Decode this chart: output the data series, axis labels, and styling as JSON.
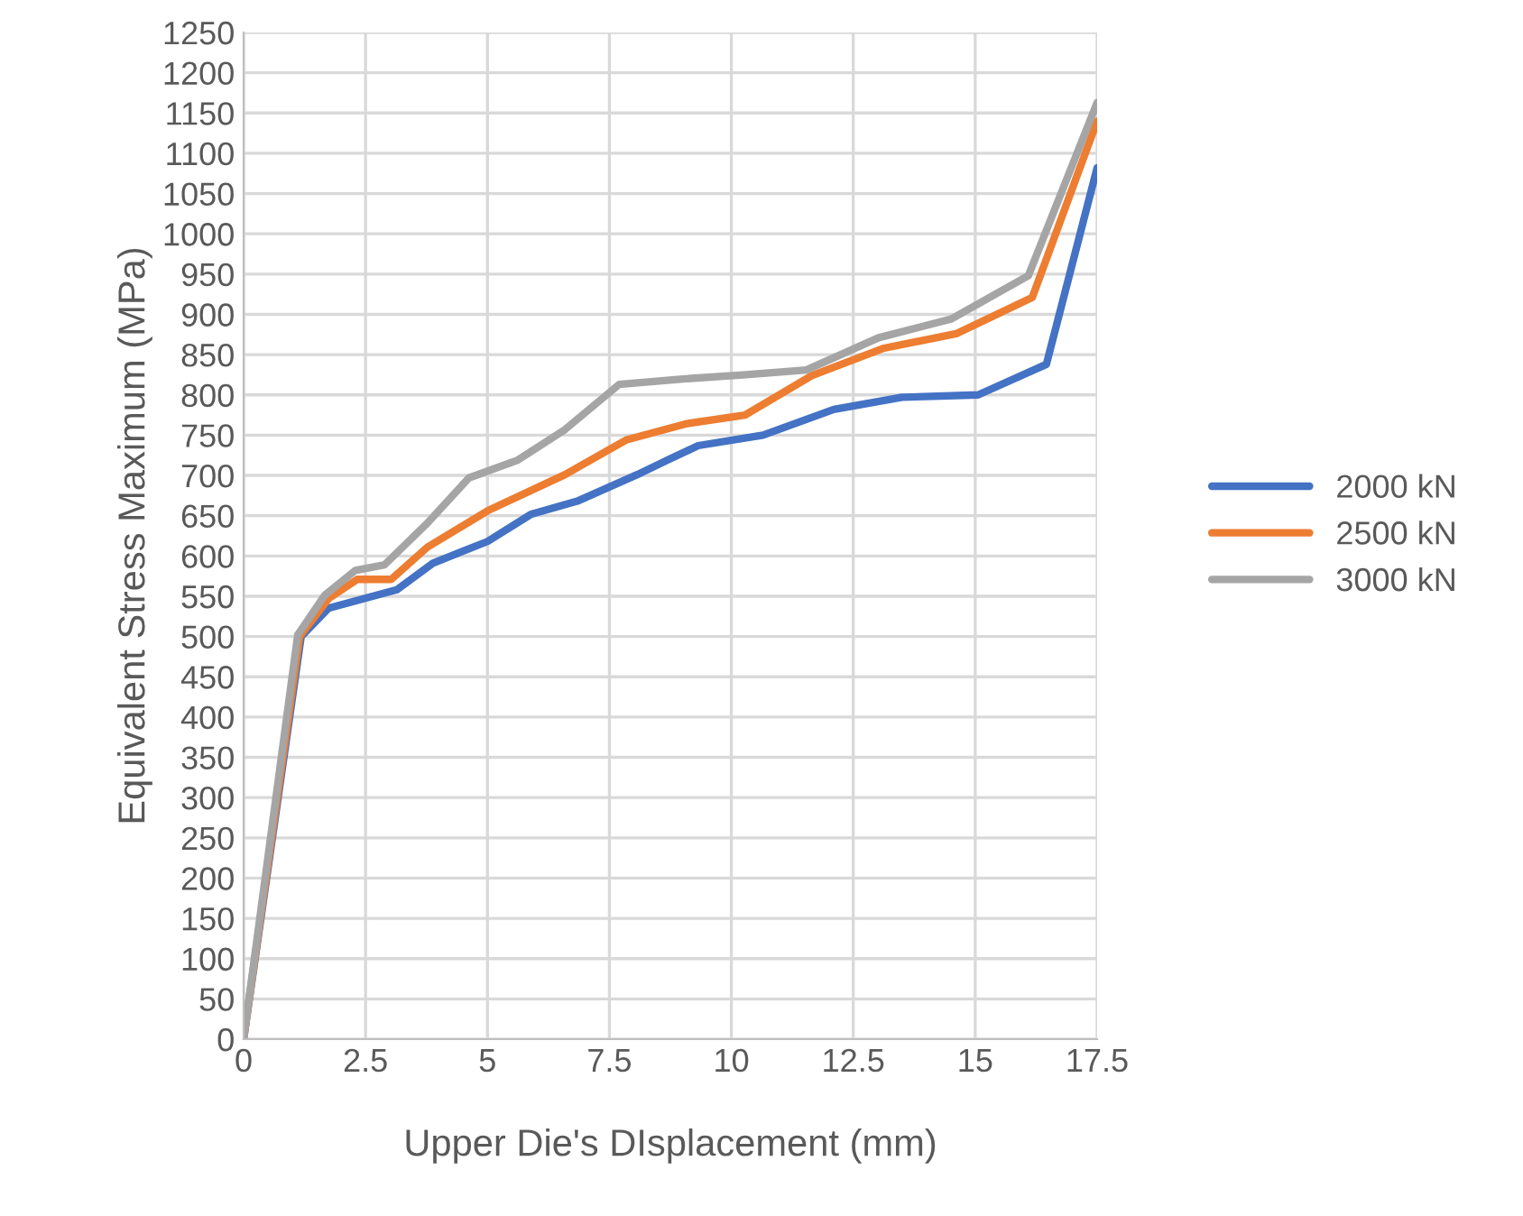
{
  "chart_data": {
    "type": "line",
    "xlabel": "Upper Die's DIsplacement (mm)",
    "ylabel": "Equivalent Stress Maximum (MPa)",
    "xlim": [
      0,
      17.5
    ],
    "xticks": [
      0,
      {
        "value": 2.5,
        "label": "2.5"
      },
      5,
      {
        "value": 7.5,
        "label": "7.5"
      },
      10,
      {
        "value": 12.5,
        "label": "12.5"
      },
      15,
      {
        "value": 17.5,
        "label": "17.5"
      }
    ],
    "ylim": [
      0,
      1250
    ],
    "yticks": [
      0,
      50,
      100,
      150,
      200,
      250,
      300,
      350,
      400,
      450,
      500,
      550,
      600,
      650,
      700,
      750,
      800,
      850,
      900,
      950,
      1000,
      1050,
      1100,
      1150,
      1200,
      1250
    ],
    "grid": true,
    "legend": "right",
    "marker": "none",
    "line_style": "solid",
    "series": [
      {
        "name": "2000 kN",
        "color": "#4472c4",
        "x": [
          0,
          1.18,
          1.74,
          3.14,
          3.88,
          5.0,
          5.9,
          6.84,
          8.07,
          8.69,
          9.32,
          10.65,
          12.1,
          13.5,
          15.06,
          16.46,
          17.5
        ],
        "values": [
          0,
          500,
          535,
          558,
          591,
          618,
          652,
          668,
          701,
          719,
          737,
          750,
          782,
          797,
          800,
          838,
          1082
        ]
      },
      {
        "name": "2500 kN",
        "color": "#ed7d31",
        "x": [
          0,
          1.15,
          1.74,
          2.33,
          3.03,
          3.77,
          5.0,
          6.59,
          7.84,
          9.06,
          10.28,
          11.65,
          13.13,
          14.61,
          16.17,
          17.5
        ],
        "values": [
          0,
          500,
          547,
          571,
          571,
          611,
          656,
          701,
          744,
          764,
          775,
          824,
          858,
          876,
          921,
          1140
        ]
      },
      {
        "name": "3000 kN",
        "color": "#a5a5a5",
        "x": [
          0,
          1.11,
          1.66,
          2.29,
          2.89,
          3.77,
          4.62,
          5.62,
          6.59,
          7.7,
          9.06,
          10.3,
          11.54,
          13.02,
          14.5,
          16.09,
          17.5
        ],
        "values": [
          0,
          502,
          551,
          582,
          589,
          641,
          697,
          719,
          757,
          813,
          820,
          825,
          831,
          871,
          894,
          948,
          1163
        ]
      }
    ]
  }
}
